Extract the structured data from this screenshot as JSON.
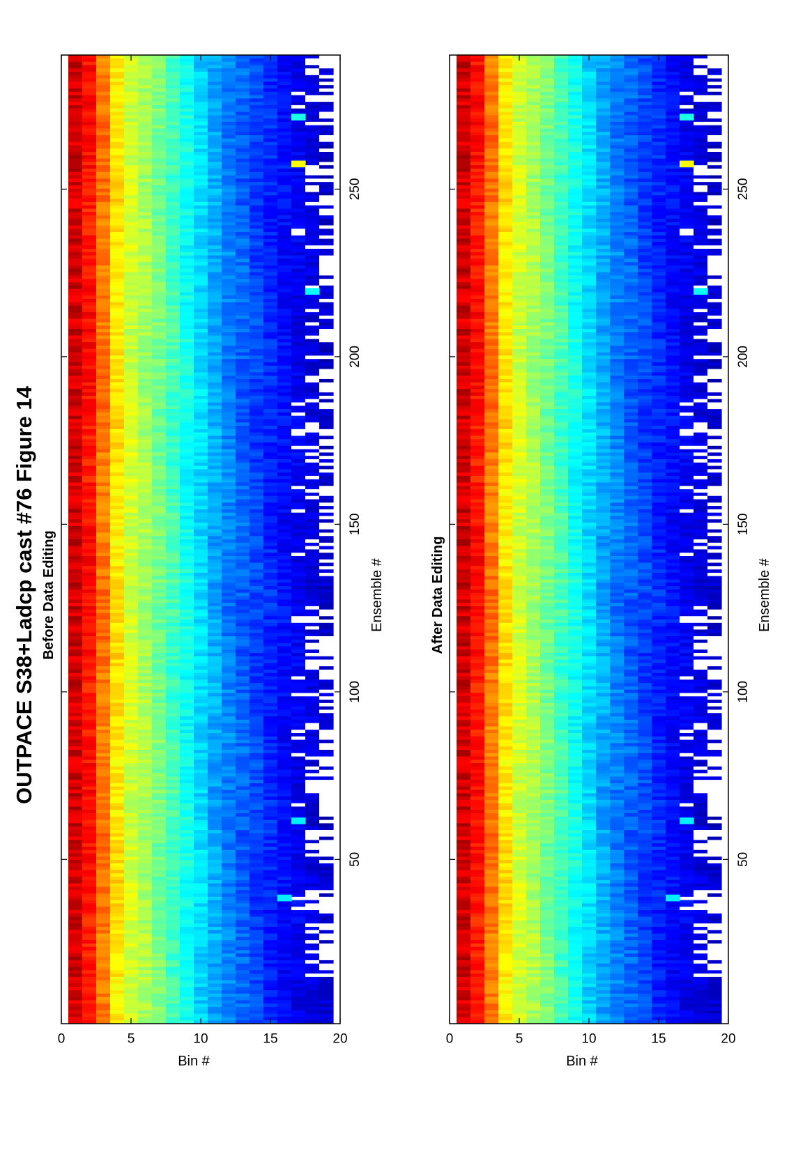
{
  "figure": {
    "title": "OUTPACE S38+Ladcp cast #76  Figure 14"
  },
  "chart_data": [
    {
      "type": "heatmap",
      "title": "Before Data Editing",
      "xlabel": "Ensemble #",
      "ylabel": "Bin #",
      "xlim": [
        1,
        290
      ],
      "ylim": [
        0,
        20
      ],
      "x_ticks": [
        "50",
        "100",
        "150",
        "200",
        "250"
      ],
      "y_ticks": [
        "0",
        "5",
        "10",
        "15",
        "20"
      ],
      "colormap": "jet",
      "colormap_stops": [
        "#00008f",
        "#0000ff",
        "#00ffff",
        "#ffff00",
        "#ff0000",
        "#800000"
      ],
      "missing_color": "#ffffff",
      "rows": 19,
      "columns": 290,
      "bin_profile": [
        0.94,
        0.86,
        0.76,
        0.65,
        0.58,
        0.54,
        0.49,
        0.44,
        0.39,
        0.34,
        0.29,
        0.25,
        0.22,
        0.19,
        0.16,
        0.13,
        0.11,
        0.09,
        0.07
      ],
      "bright_spots": [
        {
          "ensemble": 257,
          "bin": 17,
          "level": 0.62
        },
        {
          "ensemble": 271,
          "bin": 17,
          "level": 0.4
        },
        {
          "ensemble": 219,
          "bin": 18,
          "level": 0.38
        },
        {
          "ensemble": 61,
          "bin": 17,
          "level": 0.36
        },
        {
          "ensemble": 38,
          "bin": 16,
          "level": 0.36
        }
      ],
      "gap_ensembles": [
        [
          15,
          40
        ],
        [
          46,
          100
        ],
        [
          104,
          125
        ],
        [
          135,
          200
        ],
        [
          205,
          258
        ],
        [
          262,
          290
        ]
      ]
    },
    {
      "type": "heatmap",
      "title": "After Data Editing",
      "xlabel": "Ensemble #",
      "ylabel": "Bin #",
      "xlim": [
        1,
        290
      ],
      "ylim": [
        0,
        20
      ],
      "x_ticks": [
        "50",
        "100",
        "150",
        "200",
        "250"
      ],
      "y_ticks": [
        "0",
        "5",
        "10",
        "15",
        "20"
      ],
      "colormap": "jet",
      "colormap_stops": [
        "#00008f",
        "#0000ff",
        "#00ffff",
        "#ffff00",
        "#ff0000",
        "#800000"
      ],
      "missing_color": "#ffffff",
      "rows": 19,
      "columns": 290,
      "bin_profile": [
        0.94,
        0.86,
        0.76,
        0.65,
        0.58,
        0.54,
        0.49,
        0.44,
        0.39,
        0.34,
        0.29,
        0.25,
        0.22,
        0.19,
        0.16,
        0.13,
        0.11,
        0.09,
        0.07
      ],
      "bright_spots": [
        {
          "ensemble": 257,
          "bin": 17,
          "level": 0.62
        },
        {
          "ensemble": 271,
          "bin": 17,
          "level": 0.4
        },
        {
          "ensemble": 219,
          "bin": 18,
          "level": 0.38
        },
        {
          "ensemble": 61,
          "bin": 17,
          "level": 0.36
        },
        {
          "ensemble": 38,
          "bin": 16,
          "level": 0.36
        }
      ],
      "gap_ensembles": [
        [
          15,
          40
        ],
        [
          46,
          100
        ],
        [
          104,
          125
        ],
        [
          135,
          200
        ],
        [
          205,
          258
        ],
        [
          262,
          290
        ]
      ]
    }
  ]
}
